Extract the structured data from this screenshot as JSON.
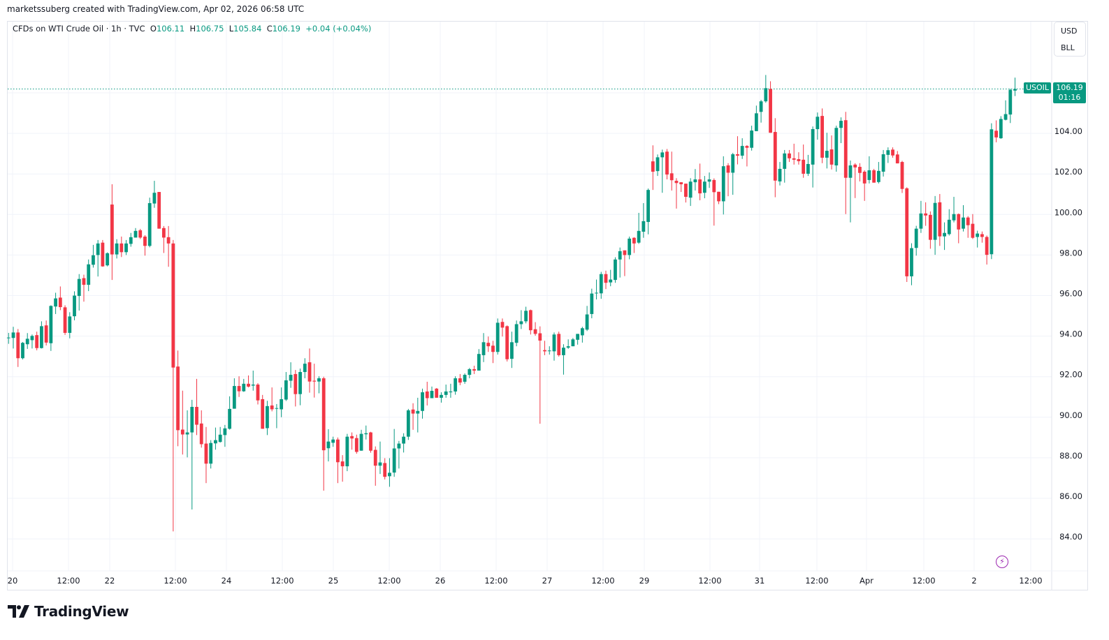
{
  "credit": "marketssuberg created with TradingView.com, Apr 02, 2026 06:58 UTC",
  "legend": {
    "symbol_desc": "CFDs on WTI Crude Oil · 1h · TVC",
    "o_label": "O",
    "o": "106.11",
    "h_label": "H",
    "h": "106.75",
    "l_label": "L",
    "l": "105.84",
    "c_label": "C",
    "c": "106.19",
    "change": "+0.04 (+0.04%)"
  },
  "units": {
    "currency": "USD",
    "unit": "BLL"
  },
  "last_price": {
    "symbol": "USOIL",
    "price": "106.19",
    "countdown": "01:16"
  },
  "brand": {
    "name": "TradingView"
  },
  "icons": {
    "alert": "lightning-icon",
    "logo": "tradingview-logo-icon"
  },
  "colors": {
    "up": "#089981",
    "down": "#F23645",
    "grid": "#f0f3fa",
    "alert": "#9c27b0"
  },
  "chart_data": {
    "type": "candlestick",
    "title": "CFDs on WTI Crude Oil · 1h · TVC",
    "interval": "1h",
    "ylim": [
      83,
      107.5
    ],
    "grid": true,
    "price_line": 106.19,
    "y_ticks": [
      "104.00",
      "102.00",
      "100.00",
      "98.00",
      "96.00",
      "94.00",
      "92.00",
      "90.00",
      "88.00",
      "86.00",
      "84.00"
    ],
    "x_ticks": [
      "20",
      "12:00",
      "22",
      "12:00",
      "24",
      "12:00",
      "25",
      "12:00",
      "26",
      "12:00",
      "27",
      "12:00",
      "29",
      "12:00",
      "31",
      "12:00",
      "Apr",
      "12:00",
      "2",
      "12:00"
    ],
    "ohlc_fields": [
      "open",
      "high",
      "low",
      "close"
    ],
    "candles": [
      [
        93.93,
        94.16,
        93.62,
        93.93
      ],
      [
        93.91,
        94.46,
        93.39,
        94.18
      ],
      [
        94.18,
        94.35,
        92.48,
        92.91
      ],
      [
        92.91,
        93.71,
        92.85,
        93.67
      ],
      [
        93.6,
        94.15,
        93.37,
        93.87
      ],
      [
        93.8,
        94.08,
        93.39,
        94.01
      ],
      [
        94.05,
        94.22,
        93.3,
        93.41
      ],
      [
        93.41,
        94.73,
        93.39,
        94.49
      ],
      [
        94.53,
        94.77,
        93.54,
        93.68
      ],
      [
        93.65,
        95.52,
        93.27,
        95.49
      ],
      [
        95.46,
        96.14,
        95.09,
        95.86
      ],
      [
        95.9,
        96.45,
        95.28,
        95.43
      ],
      [
        95.42,
        95.52,
        94.06,
        94.16
      ],
      [
        94.16,
        95.18,
        93.89,
        94.97
      ],
      [
        94.98,
        96.21,
        94.78,
        96.0
      ],
      [
        95.98,
        97.06,
        95.26,
        96.82
      ],
      [
        96.86,
        97.03,
        95.7,
        96.53
      ],
      [
        96.53,
        97.78,
        96.22,
        97.54
      ],
      [
        97.52,
        98.5,
        97.38,
        97.99
      ],
      [
        98.0,
        98.74,
        96.94,
        98.57
      ],
      [
        98.61,
        98.74,
        97.42,
        97.44
      ],
      [
        97.49,
        98.13,
        97.44,
        98.09
      ],
      [
        100.49,
        101.49,
        96.77,
        98.03
      ],
      [
        98.03,
        98.78,
        97.83,
        98.57
      ],
      [
        98.57,
        98.91,
        97.9,
        98.14
      ],
      [
        98.14,
        98.74,
        98.0,
        98.57
      ],
      [
        98.55,
        99.09,
        98.41,
        98.88
      ],
      [
        98.86,
        99.33,
        98.86,
        99.19
      ],
      [
        99.22,
        99.29,
        98.79,
        98.86
      ],
      [
        98.91,
        98.98,
        97.97,
        98.45
      ],
      [
        98.45,
        100.83,
        98.38,
        100.56
      ],
      [
        100.54,
        101.66,
        100.33,
        101.07
      ],
      [
        101.11,
        101.11,
        99.3,
        99.3
      ],
      [
        99.33,
        99.43,
        98.1,
        98.86
      ],
      [
        98.88,
        99.43,
        97.42,
        98.57
      ],
      [
        98.57,
        98.74,
        84.37,
        92.45
      ],
      [
        92.5,
        93.29,
        88.57,
        89.36
      ],
      [
        89.39,
        91.31,
        88.16,
        89.15
      ],
      [
        89.15,
        90.34,
        88.02,
        89.25
      ],
      [
        89.25,
        90.86,
        85.45,
        90.51
      ],
      [
        90.51,
        91.89,
        89.12,
        89.63
      ],
      [
        89.69,
        90.34,
        88.5,
        88.67
      ],
      [
        88.7,
        89.52,
        86.75,
        87.71
      ],
      [
        87.71,
        88.87,
        87.47,
        88.73
      ],
      [
        88.71,
        89.49,
        88.4,
        88.87
      ],
      [
        88.78,
        89.52,
        88.75,
        89.14
      ],
      [
        89.12,
        89.62,
        88.54,
        89.45
      ],
      [
        89.43,
        91.03,
        89.39,
        90.41
      ],
      [
        90.42,
        91.92,
        90.42,
        91.54
      ],
      [
        91.54,
        92.02,
        91.0,
        91.28
      ],
      [
        91.28,
        91.89,
        91.25,
        91.65
      ],
      [
        91.65,
        92.06,
        91.47,
        91.51
      ],
      [
        91.56,
        92.3,
        91.31,
        91.61
      ],
      [
        91.61,
        91.68,
        90.63,
        90.83
      ],
      [
        90.89,
        91.1,
        89.43,
        89.43
      ],
      [
        89.46,
        90.81,
        89.12,
        90.55
      ],
      [
        90.58,
        91.47,
        90.29,
        90.39
      ],
      [
        90.45,
        90.65,
        89.46,
        90.45
      ],
      [
        90.39,
        91.47,
        90.0,
        90.89
      ],
      [
        90.87,
        92.23,
        90.8,
        91.82
      ],
      [
        91.8,
        92.71,
        91.45,
        92.09
      ],
      [
        92.13,
        92.33,
        90.53,
        91.14
      ],
      [
        91.14,
        92.4,
        90.59,
        92.23
      ],
      [
        92.23,
        92.91,
        91.92,
        92.64
      ],
      [
        92.71,
        93.39,
        91.21,
        91.76
      ],
      [
        91.8,
        92.64,
        90.97,
        91.76
      ],
      [
        91.76,
        92.02,
        91.18,
        91.92
      ],
      [
        91.92,
        92.0,
        86.38,
        88.37
      ],
      [
        88.47,
        89.41,
        87.82,
        88.8
      ],
      [
        88.74,
        89.04,
        88.54,
        88.9
      ],
      [
        88.9,
        89.0,
        86.75,
        87.78
      ],
      [
        87.82,
        88.13,
        86.82,
        87.58
      ],
      [
        87.58,
        89.18,
        87.34,
        89.04
      ],
      [
        89.07,
        89.25,
        88.4,
        88.95
      ],
      [
        88.97,
        89.14,
        88.2,
        88.29
      ],
      [
        88.35,
        89.38,
        88.35,
        89.18
      ],
      [
        89.16,
        89.59,
        88.9,
        89.21
      ],
      [
        89.25,
        89.28,
        88.25,
        88.35
      ],
      [
        88.39,
        88.56,
        86.62,
        87.61
      ],
      [
        87.61,
        88.8,
        87.2,
        87.77
      ],
      [
        87.74,
        87.98,
        86.93,
        87.06
      ],
      [
        87.09,
        87.98,
        86.57,
        87.26
      ],
      [
        87.27,
        89.42,
        87.06,
        88.46
      ],
      [
        88.46,
        88.83,
        87.47,
        88.7
      ],
      [
        88.7,
        89.21,
        88.26,
        89.04
      ],
      [
        89.04,
        90.41,
        88.88,
        90.34
      ],
      [
        90.38,
        90.69,
        89.38,
        90.18
      ],
      [
        90.18,
        90.96,
        89.25,
        90.31
      ],
      [
        90.31,
        91.41,
        89.93,
        91.23
      ],
      [
        91.27,
        91.75,
        90.58,
        90.94
      ],
      [
        90.94,
        91.51,
        90.94,
        91.3
      ],
      [
        91.41,
        91.44,
        90.96,
        90.96
      ],
      [
        90.96,
        91.23,
        90.72,
        91.1
      ],
      [
        91.1,
        91.61,
        90.96,
        91.27
      ],
      [
        91.23,
        91.65,
        90.96,
        91.27
      ],
      [
        91.27,
        92.02,
        91.11,
        91.92
      ],
      [
        91.92,
        92.13,
        91.58,
        91.71
      ],
      [
        91.75,
        92.16,
        91.65,
        92.09
      ],
      [
        92.09,
        92.43,
        91.92,
        92.37
      ],
      [
        92.37,
        92.54,
        92.13,
        92.3
      ],
      [
        92.3,
        93.36,
        92.3,
        93.12
      ],
      [
        93.06,
        94.15,
        92.72,
        93.7
      ],
      [
        93.67,
        93.98,
        93.22,
        93.5
      ],
      [
        93.53,
        93.77,
        92.67,
        93.22
      ],
      [
        93.22,
        94.87,
        93.09,
        94.66
      ],
      [
        94.7,
        94.87,
        93.98,
        94.42
      ],
      [
        94.49,
        94.53,
        92.75,
        92.86
      ],
      [
        92.88,
        94.22,
        92.43,
        93.7
      ],
      [
        93.67,
        94.77,
        93.5,
        94.59
      ],
      [
        94.59,
        95.28,
        94.35,
        94.73
      ],
      [
        94.73,
        95.45,
        94.63,
        95.25
      ],
      [
        95.28,
        95.31,
        94.08,
        94.29
      ],
      [
        94.34,
        94.69,
        94.02,
        94.11
      ],
      [
        94.14,
        94.48,
        89.68,
        93.78
      ],
      [
        93.31,
        93.77,
        93.06,
        93.25
      ],
      [
        93.29,
        93.5,
        93.09,
        93.29
      ],
      [
        93.25,
        94.18,
        92.79,
        94.08
      ],
      [
        94.11,
        94.22,
        92.99,
        93.06
      ],
      [
        93.06,
        93.6,
        92.1,
        93.43
      ],
      [
        93.43,
        93.84,
        93.37,
        93.5
      ],
      [
        93.5,
        93.91,
        93.5,
        93.84
      ],
      [
        93.82,
        94.11,
        93.58,
        94.11
      ],
      [
        94.04,
        94.46,
        93.68,
        94.39
      ],
      [
        94.32,
        95.49,
        94.25,
        95.07
      ],
      [
        95.09,
        96.34,
        94.88,
        96.1
      ],
      [
        96.14,
        96.79,
        95.81,
        96.14
      ],
      [
        96.11,
        97.17,
        95.84,
        97.06
      ],
      [
        97.06,
        97.23,
        96.32,
        96.63
      ],
      [
        96.65,
        97.27,
        96.46,
        96.79
      ],
      [
        96.77,
        97.89,
        96.63,
        97.78
      ],
      [
        97.78,
        98.37,
        96.89,
        98.19
      ],
      [
        98.23,
        98.23,
        96.96,
        98.0
      ],
      [
        98.0,
        98.91,
        97.79,
        98.81
      ],
      [
        98.85,
        98.88,
        98.1,
        98.57
      ],
      [
        98.61,
        100.08,
        98.55,
        99.19
      ],
      [
        99.15,
        100.56,
        98.85,
        99.67
      ],
      [
        99.63,
        101.28,
        99.02,
        101.21
      ],
      [
        102.62,
        103.41,
        101.21,
        102.11
      ],
      [
        102.14,
        102.96,
        101.9,
        102.82
      ],
      [
        102.82,
        103.2,
        101.07,
        103.06
      ],
      [
        103.1,
        103.23,
        101.73,
        101.97
      ],
      [
        102.03,
        103.1,
        101.18,
        101.69
      ],
      [
        101.66,
        101.79,
        100.29,
        101.55
      ],
      [
        101.59,
        101.59,
        101.11,
        101.49
      ],
      [
        101.52,
        101.52,
        100.59,
        100.87
      ],
      [
        100.83,
        101.79,
        100.42,
        101.62
      ],
      [
        101.59,
        102.24,
        101.18,
        101.73
      ],
      [
        101.73,
        102.51,
        100.7,
        101.04
      ],
      [
        101.07,
        101.9,
        100.8,
        101.62
      ],
      [
        101.62,
        102.07,
        101.31,
        101.73
      ],
      [
        101.7,
        101.78,
        99.45,
        101.1
      ],
      [
        101.12,
        101.12,
        100.51,
        100.65
      ],
      [
        100.65,
        102.87,
        100.0,
        102.38
      ],
      [
        102.42,
        102.53,
        100.9,
        102.06
      ],
      [
        102.06,
        103.04,
        100.97,
        102.97
      ],
      [
        102.97,
        103.86,
        102.47,
        102.9
      ],
      [
        102.9,
        103.76,
        102.74,
        103.38
      ],
      [
        103.38,
        103.42,
        102.37,
        103.29
      ],
      [
        103.29,
        104.38,
        103.15,
        104.14
      ],
      [
        104.11,
        105.37,
        104.11,
        104.99
      ],
      [
        105.06,
        105.65,
        104.53,
        105.58
      ],
      [
        105.58,
        106.88,
        105.51,
        106.23
      ],
      [
        106.19,
        106.57,
        104.03,
        104.03
      ],
      [
        104.07,
        104.75,
        100.85,
        101.67
      ],
      [
        101.63,
        102.59,
        101.43,
        102.25
      ],
      [
        102.25,
        103.18,
        101.57,
        103.01
      ],
      [
        103.01,
        103.18,
        102.59,
        102.77
      ],
      [
        102.77,
        103.49,
        102.46,
        102.7
      ],
      [
        102.73,
        103.07,
        102.46,
        102.63
      ],
      [
        102.7,
        103.45,
        101.81,
        102.01
      ],
      [
        102.01,
        102.94,
        101.9,
        102.49
      ],
      [
        102.46,
        104.34,
        101.33,
        104.21
      ],
      [
        104.21,
        105.03,
        103.69,
        104.82
      ],
      [
        104.86,
        105.23,
        102.53,
        102.8
      ],
      [
        102.8,
        104.03,
        102.27,
        103.14
      ],
      [
        103.21,
        103.9,
        102.22,
        102.46
      ],
      [
        102.42,
        104.38,
        102.11,
        104.27
      ],
      [
        104.27,
        104.79,
        103.52,
        104.62
      ],
      [
        104.65,
        105.06,
        100.02,
        101.81
      ],
      [
        101.81,
        102.66,
        99.61,
        102.42
      ],
      [
        102.46,
        102.53,
        100.81,
        102.32
      ],
      [
        102.35,
        102.53,
        101.63,
        102.05
      ],
      [
        102.11,
        102.18,
        100.67,
        101.53
      ],
      [
        101.7,
        102.87,
        101.53,
        102.18
      ],
      [
        102.18,
        102.25,
        101.57,
        101.57
      ],
      [
        101.6,
        102.59,
        101.53,
        102.15
      ],
      [
        102.11,
        103.18,
        101.87,
        102.97
      ],
      [
        102.94,
        103.31,
        102.54,
        103.17
      ],
      [
        103.2,
        103.31,
        102.8,
        102.91
      ],
      [
        102.96,
        103.13,
        102.52,
        102.52
      ],
      [
        102.59,
        102.65,
        101.06,
        101.26
      ],
      [
        101.29,
        101.34,
        96.67,
        96.95
      ],
      [
        96.95,
        98.58,
        96.51,
        98.34
      ],
      [
        98.35,
        99.44,
        97.97,
        99.3
      ],
      [
        99.3,
        100.67,
        99.09,
        100.05
      ],
      [
        100.05,
        100.6,
        99.44,
        99.95
      ],
      [
        99.98,
        100.15,
        98.31,
        98.75
      ],
      [
        98.75,
        100.91,
        98.01,
        100.57
      ],
      [
        100.6,
        101.01,
        98.45,
        98.92
      ],
      [
        98.92,
        99.61,
        98.25,
        99.09
      ],
      [
        99.03,
        100.26,
        98.96,
        99.74
      ],
      [
        99.71,
        100.87,
        99.61,
        100.02
      ],
      [
        100.02,
        100.05,
        98.58,
        99.26
      ],
      [
        99.3,
        100.46,
        99.16,
        99.85
      ],
      [
        99.85,
        99.92,
        98.85,
        99.47
      ],
      [
        99.54,
        100.02,
        98.79,
        98.85
      ],
      [
        98.89,
        99.2,
        98.37,
        99.06
      ],
      [
        99.03,
        99.16,
        98.61,
        98.89
      ],
      [
        98.89,
        98.96,
        97.53,
        98.01
      ],
      [
        98.04,
        104.5,
        97.8,
        104.2
      ],
      [
        104.13,
        104.64,
        103.56,
        103.8
      ],
      [
        103.76,
        104.85,
        103.73,
        104.71
      ],
      [
        104.67,
        105.63,
        104.64,
        104.95
      ],
      [
        104.93,
        106.2,
        104.51,
        106.15
      ],
      [
        106.11,
        106.75,
        105.84,
        106.19
      ]
    ]
  }
}
